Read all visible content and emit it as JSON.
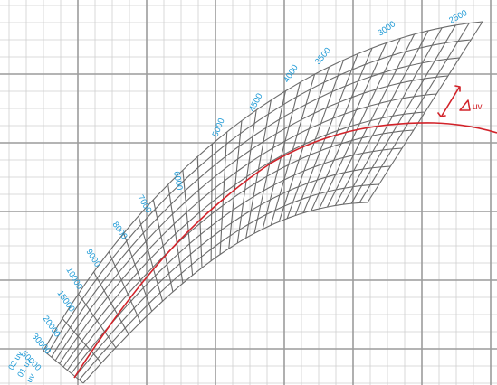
{
  "colors": {
    "background": "#ffffff",
    "grid_minor": "#cfcfcf",
    "grid_major": "#9c9c9c",
    "isotherm_mesh": "#6b6b6b",
    "planckian_locus": "#d2232a",
    "cct_labels": "#1e9ad6",
    "duv_annotation": "#d2232a"
  },
  "cct_labels": [
    "2500",
    "3000",
    "3500",
    "4000",
    "4500",
    "5000",
    "6000",
    "7000",
    "8000",
    "9000",
    "10000",
    "15000",
    "20000",
    "30000",
    "50000"
  ],
  "duv_labels": [
    "02 uv",
    "01 uv",
    "uv"
  ],
  "duv_annotation": {
    "label": "uv",
    "icon": "delta-triangle-icon",
    "arrow_icon": "double-headed-arrow-icon"
  }
}
